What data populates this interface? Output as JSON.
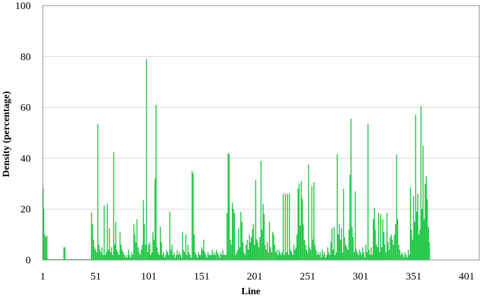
{
  "chart_data": {
    "type": "bar",
    "xlabel": "Line",
    "ylabel": "Density (percentage)",
    "ylim": [
      0,
      100
    ],
    "y_ticks": [
      0,
      20,
      40,
      60,
      80,
      100
    ],
    "x_ticks": [
      1,
      51,
      101,
      151,
      201,
      251,
      301,
      351,
      401
    ],
    "xlim": [
      1,
      413
    ],
    "grid": true,
    "bar_color": "#12c43a",
    "series": [
      {
        "values": [
          28.5,
          20,
          10,
          9,
          9.5,
          0.5,
          0.3,
          0.3,
          0.3,
          0.3,
          0.3,
          0.3,
          0.3,
          0.3,
          0.3,
          0.3,
          0.3,
          0.3,
          0.3,
          0.3,
          5,
          5,
          0.3,
          0.3,
          0.3,
          0.3,
          0.3,
          0.3,
          0.3,
          0.3,
          0.3,
          0.3,
          0.3,
          0.3,
          0.3,
          0.3,
          0.3,
          0.3,
          0.3,
          0.3,
          0.3,
          0.3,
          0.3,
          0.3,
          0.3,
          0.3,
          18.5,
          14,
          8,
          5,
          4,
          3,
          53.5,
          6,
          4,
          3,
          5,
          2,
          21.5,
          2,
          3,
          22,
          4,
          12.5,
          3,
          5,
          2,
          42.5,
          6,
          15,
          4,
          3,
          2,
          11,
          6,
          4,
          3,
          2,
          1,
          2,
          1,
          4,
          2,
          1,
          3,
          2,
          14,
          10,
          7,
          16,
          5,
          3,
          2,
          4,
          6,
          23.5,
          14,
          6,
          79,
          3,
          6,
          7,
          2,
          3,
          11,
          8,
          32,
          61,
          5,
          3,
          2,
          13,
          7,
          2,
          3,
          1,
          2,
          4,
          3,
          2,
          19,
          4,
          6,
          2,
          3,
          1,
          2,
          4,
          2,
          3,
          2,
          1,
          11,
          4,
          3,
          10,
          2,
          6,
          3,
          2,
          1,
          35,
          34,
          10,
          3,
          2,
          1,
          3,
          2,
          2,
          5,
          4,
          8,
          3,
          2,
          1,
          3,
          2,
          2,
          2,
          4,
          2,
          3,
          2,
          4,
          3,
          2,
          1,
          3,
          2,
          4,
          2,
          2,
          2,
          18.5,
          42,
          41.5,
          8,
          6,
          22.5,
          20,
          18.5,
          2,
          3,
          4,
          12.5,
          5,
          19,
          15,
          7,
          3,
          2,
          6,
          8,
          4,
          10,
          7,
          9,
          12,
          14,
          6,
          31.5,
          8,
          7,
          5,
          9,
          39,
          12,
          22,
          18,
          6,
          4,
          7,
          3,
          15,
          5,
          3,
          11,
          10,
          6,
          3,
          4,
          2,
          4,
          3,
          2,
          3,
          26,
          2,
          26,
          3,
          26,
          2,
          26,
          4,
          3,
          2,
          6,
          4,
          5,
          10,
          28,
          30,
          13.5,
          31,
          24,
          14,
          8,
          6,
          4,
          3,
          37.5,
          5,
          4,
          29,
          8,
          30.5,
          6,
          4,
          2,
          3,
          2,
          3,
          1,
          4,
          2,
          3,
          1,
          2,
          5,
          3,
          2,
          7,
          12.5,
          4,
          13,
          2,
          3,
          41.5,
          10,
          14,
          8,
          12.5,
          3,
          28,
          9,
          6,
          5,
          4,
          12,
          33.5,
          55.5,
          13,
          9,
          3,
          27,
          4,
          3,
          2,
          4,
          3,
          2,
          5,
          3,
          1,
          6,
          3,
          53.5,
          4,
          2,
          5,
          2,
          16,
          20.5,
          12,
          6,
          5,
          18.5,
          3,
          18,
          5,
          16,
          11,
          6,
          3,
          18.5,
          7,
          4,
          9,
          10,
          8,
          6,
          10,
          14,
          41.5,
          16,
          6,
          4,
          2,
          3,
          2,
          1,
          3,
          2,
          1,
          4,
          2,
          28.5,
          12,
          8,
          25,
          15,
          57,
          19,
          26,
          10,
          12,
          60.5,
          20,
          45,
          16,
          30,
          33,
          24,
          13,
          7,
          0,
          0,
          0,
          0,
          0,
          0,
          0,
          0,
          0,
          0,
          0,
          0,
          0,
          0,
          0
        ]
      }
    ]
  }
}
